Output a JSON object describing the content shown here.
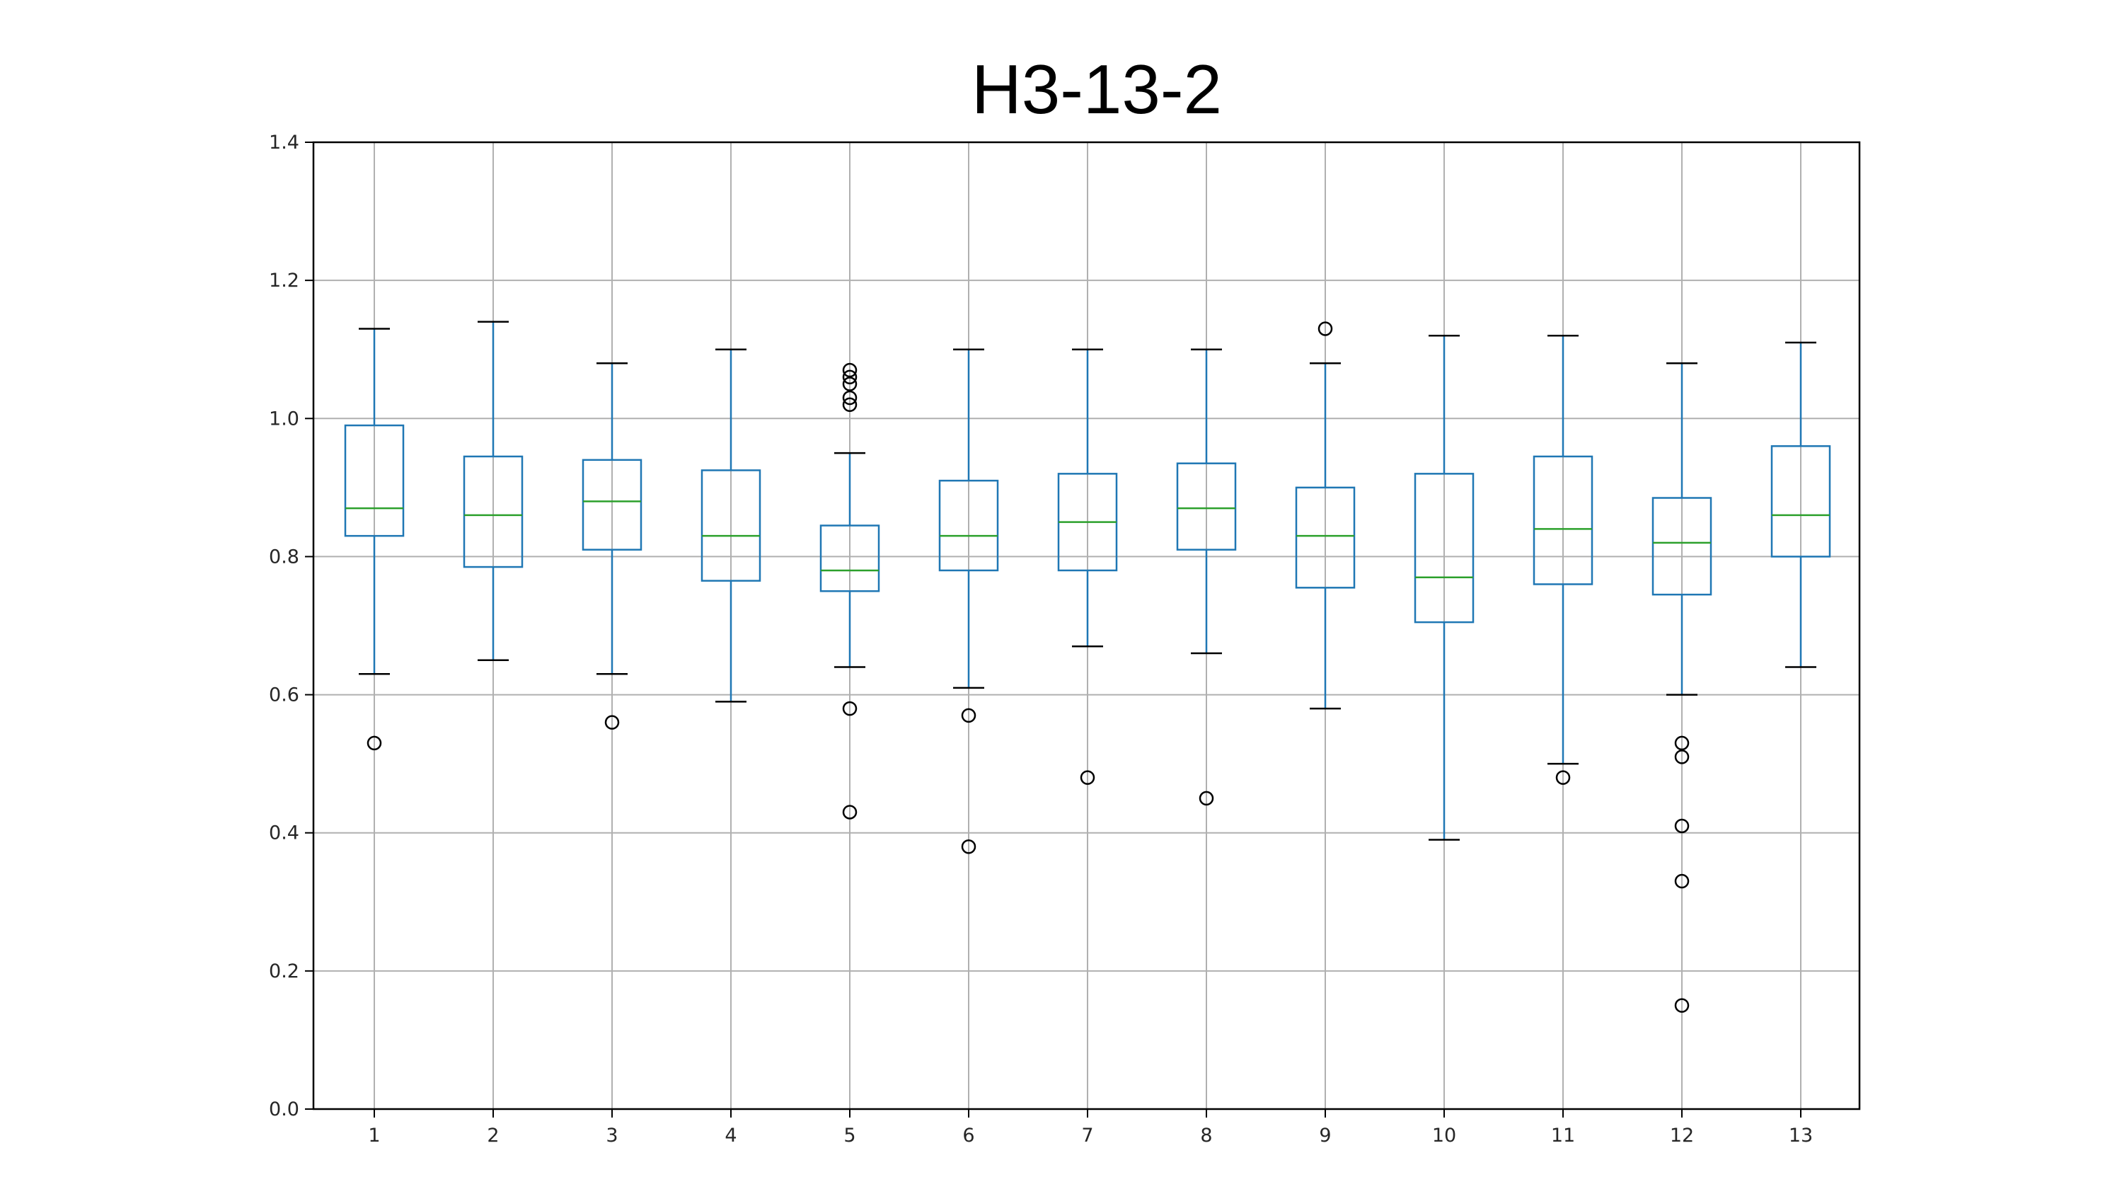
{
  "chart_data": {
    "type": "box",
    "title": "H3-13-2",
    "xlabel": "",
    "ylabel": "",
    "categories": [
      "1",
      "2",
      "3",
      "4",
      "5",
      "6",
      "7",
      "8",
      "9",
      "10",
      "11",
      "12",
      "13"
    ],
    "ylim": [
      0.0,
      1.4
    ],
    "yticks": [
      "0.0",
      "0.2",
      "0.4",
      "0.6",
      "0.8",
      "1.0",
      "1.2",
      "1.4"
    ],
    "grid": true,
    "boxes": [
      {
        "category": "1",
        "whisker_low": 0.63,
        "q1": 0.83,
        "median": 0.87,
        "q3": 0.99,
        "whisker_high": 1.13,
        "outliers": [
          0.53
        ]
      },
      {
        "category": "2",
        "whisker_low": 0.65,
        "q1": 0.785,
        "median": 0.86,
        "q3": 0.945,
        "whisker_high": 1.14,
        "outliers": []
      },
      {
        "category": "3",
        "whisker_low": 0.63,
        "q1": 0.81,
        "median": 0.88,
        "q3": 0.94,
        "whisker_high": 1.08,
        "outliers": [
          0.56
        ]
      },
      {
        "category": "4",
        "whisker_low": 0.59,
        "q1": 0.765,
        "median": 0.83,
        "q3": 0.925,
        "whisker_high": 1.1,
        "outliers": []
      },
      {
        "category": "5",
        "whisker_low": 0.64,
        "q1": 0.75,
        "median": 0.78,
        "q3": 0.845,
        "whisker_high": 0.95,
        "outliers": [
          1.02,
          1.03,
          1.05,
          1.06,
          1.07,
          0.58,
          0.43
        ]
      },
      {
        "category": "6",
        "whisker_low": 0.61,
        "q1": 0.78,
        "median": 0.83,
        "q3": 0.91,
        "whisker_high": 1.1,
        "outliers": [
          0.57,
          0.38
        ]
      },
      {
        "category": "7",
        "whisker_low": 0.67,
        "q1": 0.78,
        "median": 0.85,
        "q3": 0.92,
        "whisker_high": 1.1,
        "outliers": [
          0.48
        ]
      },
      {
        "category": "8",
        "whisker_low": 0.66,
        "q1": 0.81,
        "median": 0.87,
        "q3": 0.935,
        "whisker_high": 1.1,
        "outliers": [
          0.45
        ]
      },
      {
        "category": "9",
        "whisker_low": 0.58,
        "q1": 0.755,
        "median": 0.83,
        "q3": 0.9,
        "whisker_high": 1.08,
        "outliers": [
          1.13
        ]
      },
      {
        "category": "10",
        "whisker_low": 0.39,
        "q1": 0.705,
        "median": 0.77,
        "q3": 0.92,
        "whisker_high": 1.12,
        "outliers": []
      },
      {
        "category": "11",
        "whisker_low": 0.5,
        "q1": 0.76,
        "median": 0.84,
        "q3": 0.945,
        "whisker_high": 1.12,
        "outliers": [
          0.48
        ]
      },
      {
        "category": "12",
        "whisker_low": 0.6,
        "q1": 0.745,
        "median": 0.82,
        "q3": 0.885,
        "whisker_high": 1.08,
        "outliers": [
          0.53,
          0.51,
          0.41,
          0.33,
          0.15
        ]
      },
      {
        "category": "13",
        "whisker_low": 0.64,
        "q1": 0.8,
        "median": 0.86,
        "q3": 0.96,
        "whisker_high": 1.11,
        "outliers": []
      }
    ],
    "colors": {
      "box": "#1f77b4",
      "median": "#2ca02c",
      "cap": "#000000",
      "outlier": "#000000",
      "grid": "#b0b0b0",
      "axis": "#000000"
    }
  }
}
